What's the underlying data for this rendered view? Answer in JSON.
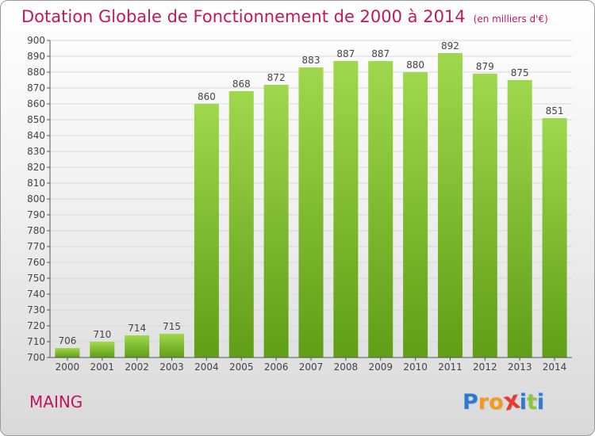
{
  "title": "Dotation Globale de Fonctionnement de 2000 à 2014",
  "title_unit": "(en milliers d'€)",
  "municipality": "MAING",
  "logo": {
    "letters": [
      "P",
      "r",
      "o",
      "x",
      "i",
      "t",
      "i"
    ],
    "colors": [
      "#2b7bd6",
      "#f39a1e",
      "#f39a1e",
      "#e63b2e",
      "#2b7bd6",
      "#8cc63f",
      "#2b7bd6"
    ]
  },
  "colors": {
    "title": "#c2185b",
    "bar_top": "#9fd84c",
    "bar_bottom": "#5f9e16",
    "grid": "#d8d8d8",
    "axis": "#555555"
  },
  "chart_data": {
    "type": "bar",
    "title": "Dotation Globale de Fonctionnement de 2000 à 2014",
    "ylabel": "en milliers d'€",
    "xlabel": "",
    "categories": [
      "2000",
      "2001",
      "2002",
      "2003",
      "2004",
      "2005",
      "2006",
      "2007",
      "2008",
      "2009",
      "2010",
      "2011",
      "2012",
      "2013",
      "2014"
    ],
    "values": [
      706,
      710,
      714,
      715,
      860,
      868,
      872,
      883,
      887,
      887,
      880,
      892,
      879,
      875,
      851
    ],
    "ylim": [
      700,
      900
    ],
    "ytick_step": 10,
    "grid": true
  }
}
